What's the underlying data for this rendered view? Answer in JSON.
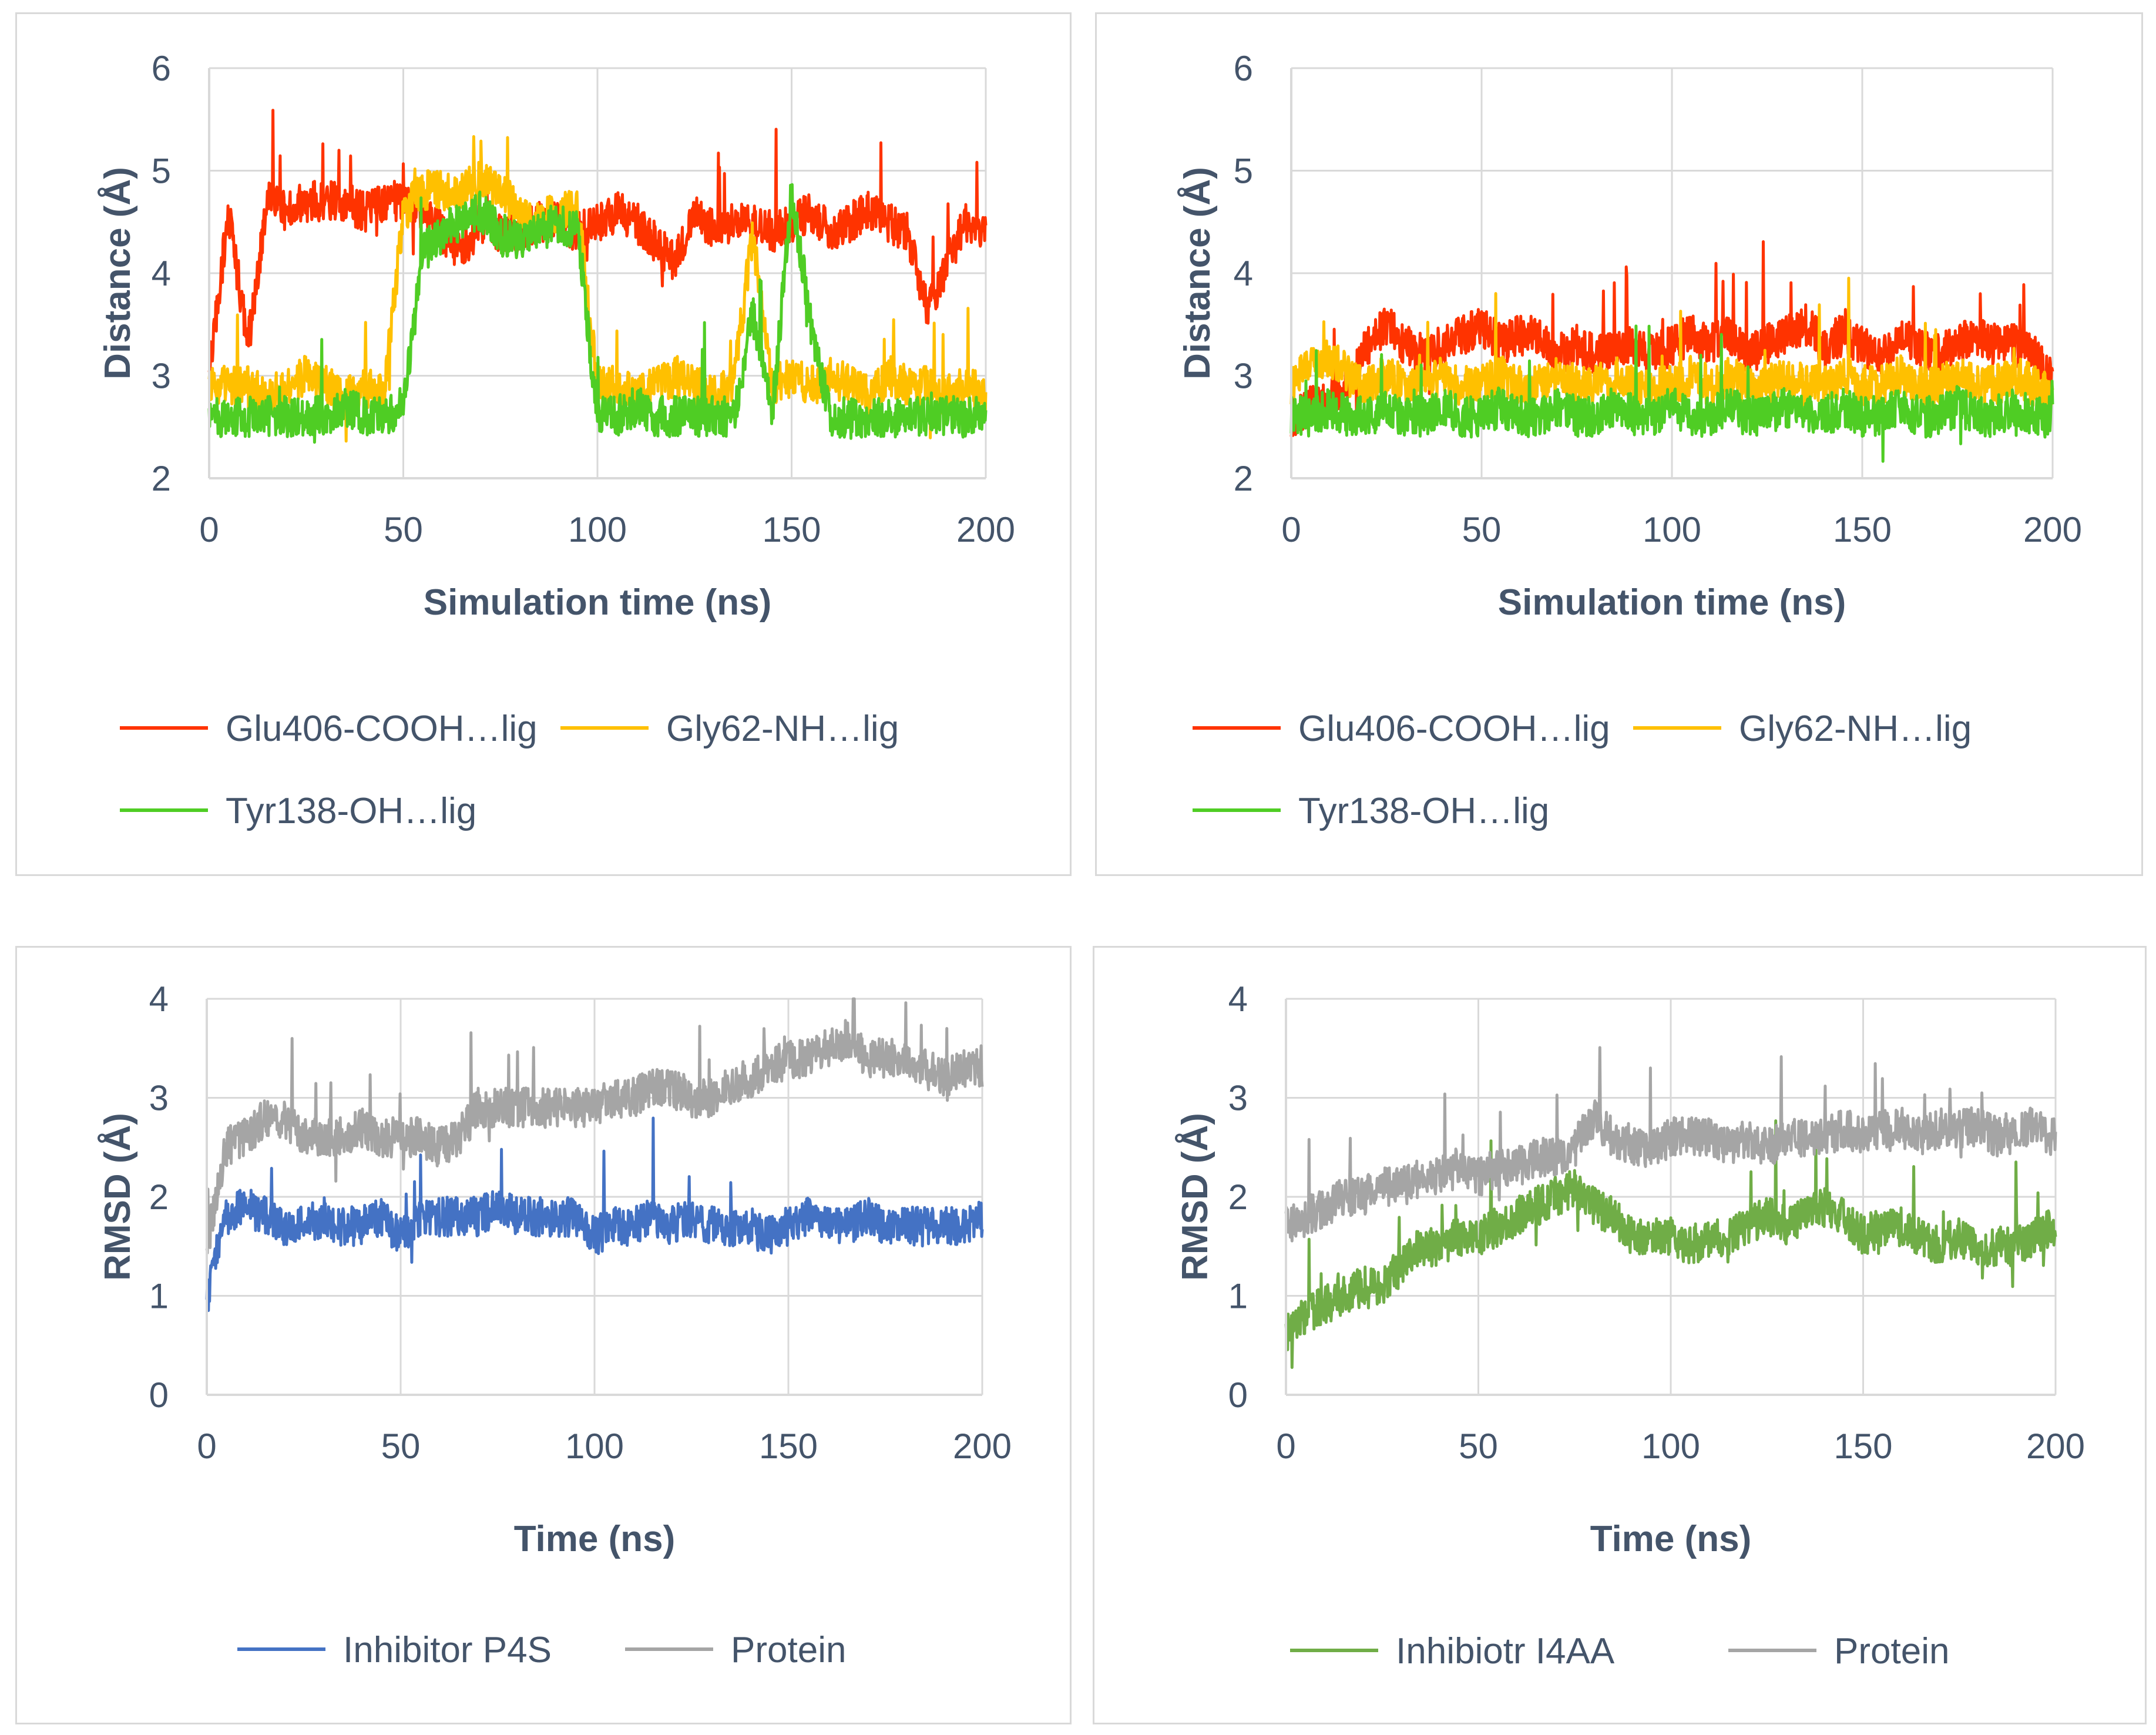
{
  "chart_data": [
    {
      "type": "line",
      "xlabel": "Simulation time (ns)",
      "ylabel": "Distance (Å)",
      "xlim": [
        0,
        200
      ],
      "ylim": [
        2,
        6
      ],
      "xticks": [
        "0",
        "50",
        "100",
        "150",
        "200"
      ],
      "yticks": [
        "2",
        "3",
        "4",
        "5",
        "6"
      ],
      "grid": true,
      "legend_position": "bottom",
      "series": [
        {
          "name": "Glu406-COOH…lig",
          "color": "#ff3300",
          "x": [
            0,
            5,
            10,
            15,
            20,
            25,
            30,
            35,
            40,
            45,
            50,
            55,
            60,
            65,
            70,
            75,
            80,
            85,
            90,
            95,
            100,
            105,
            110,
            115,
            120,
            125,
            130,
            135,
            140,
            145,
            150,
            155,
            160,
            165,
            170,
            175,
            180,
            185,
            190,
            195,
            200
          ],
          "y": [
            3.0,
            4.6,
            3.3,
            4.7,
            4.6,
            4.7,
            4.7,
            4.7,
            4.6,
            4.7,
            4.7,
            4.6,
            4.4,
            4.2,
            4.5,
            4.4,
            4.4,
            4.5,
            4.5,
            4.4,
            4.5,
            4.6,
            4.5,
            4.3,
            4.1,
            4.6,
            4.4,
            4.5,
            4.5,
            4.4,
            4.5,
            4.6,
            4.4,
            4.5,
            4.6,
            4.5,
            4.4,
            3.6,
            4.1,
            4.5,
            4.4
          ]
        },
        {
          "name": "Gly62-NH…lig",
          "color": "#ffc000",
          "x": [
            0,
            5,
            10,
            15,
            20,
            25,
            30,
            35,
            40,
            45,
            50,
            55,
            60,
            65,
            70,
            75,
            80,
            85,
            90,
            95,
            100,
            105,
            110,
            115,
            120,
            125,
            130,
            135,
            140,
            145,
            150,
            155,
            160,
            165,
            170,
            175,
            180,
            185,
            190,
            195,
            200
          ],
          "y": [
            2.9,
            2.9,
            2.9,
            2.8,
            2.9,
            3.0,
            2.9,
            2.8,
            2.9,
            2.8,
            4.6,
            4.8,
            4.8,
            4.8,
            4.9,
            4.8,
            4.6,
            4.5,
            4.6,
            4.6,
            2.9,
            2.9,
            2.8,
            2.9,
            3.0,
            2.9,
            2.8,
            2.9,
            4.4,
            2.9,
            3.0,
            2.9,
            3.0,
            2.9,
            2.8,
            3.0,
            2.9,
            2.9,
            2.8,
            2.9,
            2.8
          ]
        },
        {
          "name": "Tyr138-OH…lig",
          "color": "#4fcd24",
          "x": [
            0,
            5,
            10,
            15,
            20,
            25,
            30,
            35,
            40,
            45,
            50,
            55,
            60,
            65,
            70,
            75,
            80,
            85,
            90,
            95,
            100,
            105,
            110,
            115,
            120,
            125,
            130,
            135,
            140,
            145,
            150,
            155,
            160,
            165,
            170,
            175,
            180,
            185,
            190,
            195,
            200
          ],
          "y": [
            2.6,
            2.6,
            2.6,
            2.6,
            2.6,
            2.6,
            2.6,
            2.7,
            2.6,
            2.6,
            2.7,
            4.2,
            4.4,
            4.5,
            4.6,
            4.4,
            4.3,
            4.4,
            4.5,
            4.4,
            2.6,
            2.6,
            2.7,
            2.6,
            2.6,
            2.6,
            2.6,
            2.6,
            3.6,
            2.6,
            4.8,
            3.5,
            2.6,
            2.6,
            2.6,
            2.6,
            2.6,
            2.6,
            2.6,
            2.6,
            2.6
          ]
        }
      ]
    },
    {
      "type": "line",
      "xlabel": "Simulation time (ns)",
      "ylabel": "Distance (Å)",
      "xlim": [
        0,
        200
      ],
      "ylim": [
        2,
        6
      ],
      "xticks": [
        "0",
        "50",
        "100",
        "150",
        "200"
      ],
      "yticks": [
        "2",
        "3",
        "4",
        "5",
        "6"
      ],
      "grid": true,
      "legend_position": "bottom",
      "series": [
        {
          "name": "Glu406-COOH…lig",
          "color": "#ff3300",
          "x": [
            0,
            5,
            10,
            15,
            20,
            25,
            30,
            35,
            40,
            45,
            50,
            55,
            60,
            65,
            70,
            75,
            80,
            85,
            90,
            95,
            100,
            105,
            110,
            115,
            120,
            125,
            130,
            135,
            140,
            145,
            150,
            155,
            160,
            165,
            170,
            175,
            180,
            185,
            190,
            195,
            200
          ],
          "y": [
            2.6,
            2.7,
            2.8,
            2.9,
            3.3,
            3.5,
            3.3,
            3.2,
            3.3,
            3.4,
            3.5,
            3.3,
            3.4,
            3.4,
            3.2,
            3.3,
            3.2,
            3.3,
            3.3,
            3.2,
            3.3,
            3.4,
            3.3,
            3.4,
            3.2,
            3.3,
            3.4,
            3.5,
            3.3,
            3.4,
            3.3,
            3.2,
            3.4,
            3.3,
            3.2,
            3.3,
            3.4,
            3.3,
            3.3,
            3.2,
            3.0
          ]
        },
        {
          "name": "Gly62-NH…lig",
          "color": "#ffc000",
          "x": [
            0,
            5,
            10,
            15,
            20,
            25,
            30,
            35,
            40,
            45,
            50,
            55,
            60,
            65,
            70,
            75,
            80,
            85,
            90,
            95,
            100,
            105,
            110,
            115,
            120,
            125,
            130,
            135,
            140,
            145,
            150,
            155,
            160,
            165,
            170,
            175,
            180,
            185,
            190,
            195,
            200
          ],
          "y": [
            2.9,
            3.1,
            3.2,
            3.0,
            2.9,
            3.0,
            2.9,
            2.9,
            3.0,
            2.9,
            2.9,
            3.0,
            2.9,
            2.9,
            3.0,
            2.9,
            2.9,
            3.0,
            2.9,
            2.9,
            2.9,
            3.0,
            2.9,
            3.0,
            2.9,
            2.9,
            3.0,
            2.9,
            2.9,
            3.0,
            2.9,
            2.9,
            3.0,
            2.9,
            2.9,
            3.0,
            2.9,
            2.9,
            3.0,
            2.9,
            2.8
          ]
        },
        {
          "name": "Tyr138-OH…lig",
          "color": "#4fcd24",
          "x": [
            0,
            5,
            10,
            15,
            20,
            25,
            30,
            35,
            40,
            45,
            50,
            55,
            60,
            65,
            70,
            75,
            80,
            85,
            90,
            95,
            100,
            105,
            110,
            115,
            120,
            125,
            130,
            135,
            140,
            145,
            150,
            155,
            160,
            165,
            170,
            175,
            180,
            185,
            190,
            195,
            200
          ],
          "y": [
            2.6,
            2.6,
            2.7,
            2.6,
            2.6,
            2.7,
            2.6,
            2.6,
            2.7,
            2.6,
            2.6,
            2.7,
            2.6,
            2.6,
            2.7,
            2.6,
            2.6,
            2.7,
            2.6,
            2.6,
            2.7,
            2.6,
            2.6,
            2.7,
            2.6,
            2.6,
            2.7,
            2.6,
            2.6,
            2.7,
            2.6,
            2.6,
            2.7,
            2.6,
            2.6,
            2.7,
            2.6,
            2.6,
            2.7,
            2.6,
            2.6
          ]
        }
      ]
    },
    {
      "type": "line",
      "xlabel": "Time (ns)",
      "ylabel": "RMSD (Å)",
      "xlim": [
        0,
        200
      ],
      "ylim": [
        0,
        4
      ],
      "xticks": [
        "0",
        "50",
        "100",
        "150",
        "200"
      ],
      "yticks": [
        "0",
        "1",
        "2",
        "3",
        "4"
      ],
      "grid": true,
      "legend_position": "bottom",
      "series": [
        {
          "name": "Inhibitor P4S",
          "color": "#4472c4",
          "x": [
            0,
            5,
            10,
            15,
            20,
            25,
            30,
            35,
            40,
            45,
            50,
            55,
            60,
            65,
            70,
            75,
            80,
            85,
            90,
            95,
            100,
            105,
            110,
            115,
            120,
            125,
            130,
            135,
            140,
            145,
            150,
            155,
            160,
            165,
            170,
            175,
            180,
            185,
            190,
            195,
            200
          ],
          "y": [
            1.0,
            1.8,
            1.9,
            1.8,
            1.7,
            1.7,
            1.8,
            1.7,
            1.7,
            1.8,
            1.6,
            1.8,
            1.8,
            1.8,
            1.8,
            1.9,
            1.8,
            1.8,
            1.8,
            1.8,
            1.6,
            1.7,
            1.7,
            1.8,
            1.7,
            1.8,
            1.7,
            1.7,
            1.7,
            1.6,
            1.7,
            1.8,
            1.7,
            1.7,
            1.8,
            1.7,
            1.7,
            1.7,
            1.7,
            1.7,
            1.8
          ]
        },
        {
          "name": "Protein",
          "color": "#a5a5a5",
          "x": [
            0,
            5,
            10,
            15,
            20,
            25,
            30,
            35,
            40,
            45,
            50,
            55,
            60,
            65,
            70,
            75,
            80,
            85,
            90,
            95,
            100,
            105,
            110,
            115,
            120,
            125,
            130,
            135,
            140,
            145,
            150,
            155,
            160,
            165,
            170,
            175,
            180,
            185,
            190,
            195,
            200
          ],
          "y": [
            1.5,
            2.5,
            2.6,
            2.8,
            2.8,
            2.6,
            2.6,
            2.6,
            2.7,
            2.6,
            2.6,
            2.6,
            2.5,
            2.6,
            2.9,
            2.9,
            2.9,
            2.9,
            2.9,
            2.9,
            2.9,
            3.0,
            3.0,
            3.1,
            3.1,
            3.0,
            3.0,
            3.1,
            3.2,
            3.3,
            3.4,
            3.4,
            3.5,
            3.6,
            3.4,
            3.4,
            3.4,
            3.3,
            3.2,
            3.3,
            3.3
          ]
        }
      ]
    },
    {
      "type": "line",
      "xlabel": "Time (ns)",
      "ylabel": "RMSD (Å)",
      "xlim": [
        0,
        200
      ],
      "ylim": [
        0,
        4
      ],
      "xticks": [
        "0",
        "50",
        "100",
        "150",
        "200"
      ],
      "yticks": [
        "0",
        "1",
        "2",
        "3",
        "4"
      ],
      "grid": true,
      "legend_position": "bottom",
      "series": [
        {
          "name": "Inhibiotr I4AA",
          "color": "#70ad47",
          "x": [
            0,
            5,
            10,
            15,
            20,
            25,
            30,
            35,
            40,
            45,
            50,
            55,
            60,
            65,
            70,
            75,
            80,
            85,
            90,
            95,
            100,
            105,
            110,
            115,
            120,
            125,
            130,
            135,
            140,
            145,
            150,
            155,
            160,
            165,
            170,
            175,
            180,
            185,
            190,
            195,
            200
          ],
          "y": [
            0.6,
            0.8,
            0.9,
            1.0,
            1.1,
            1.1,
            1.3,
            1.5,
            1.5,
            1.6,
            1.6,
            1.7,
            1.8,
            1.9,
            2.0,
            2.1,
            1.9,
            1.8,
            1.6,
            1.6,
            1.6,
            1.5,
            1.6,
            1.6,
            1.7,
            1.8,
            1.7,
            1.8,
            1.9,
            1.8,
            1.6,
            1.7,
            1.7,
            1.6,
            1.5,
            1.6,
            1.5,
            1.5,
            1.5,
            1.6,
            1.7
          ]
        },
        {
          "name": "Protein",
          "color": "#a5a5a5",
          "x": [
            0,
            5,
            10,
            15,
            20,
            25,
            30,
            35,
            40,
            45,
            50,
            55,
            60,
            65,
            70,
            75,
            80,
            85,
            90,
            95,
            100,
            105,
            110,
            115,
            120,
            125,
            130,
            135,
            140,
            145,
            150,
            155,
            160,
            165,
            170,
            175,
            180,
            185,
            190,
            195,
            200
          ],
          "y": [
            1.7,
            1.8,
            1.9,
            2.0,
            2.0,
            2.1,
            2.1,
            2.2,
            2.2,
            2.3,
            2.2,
            2.3,
            2.3,
            2.4,
            2.4,
            2.5,
            2.8,
            2.6,
            2.5,
            2.5,
            2.6,
            2.6,
            2.6,
            2.5,
            2.6,
            2.5,
            2.6,
            2.6,
            2.6,
            2.7,
            2.6,
            2.7,
            2.7,
            2.6,
            2.7,
            2.7,
            2.7,
            2.6,
            2.7,
            2.7,
            2.6
          ]
        }
      ]
    }
  ]
}
